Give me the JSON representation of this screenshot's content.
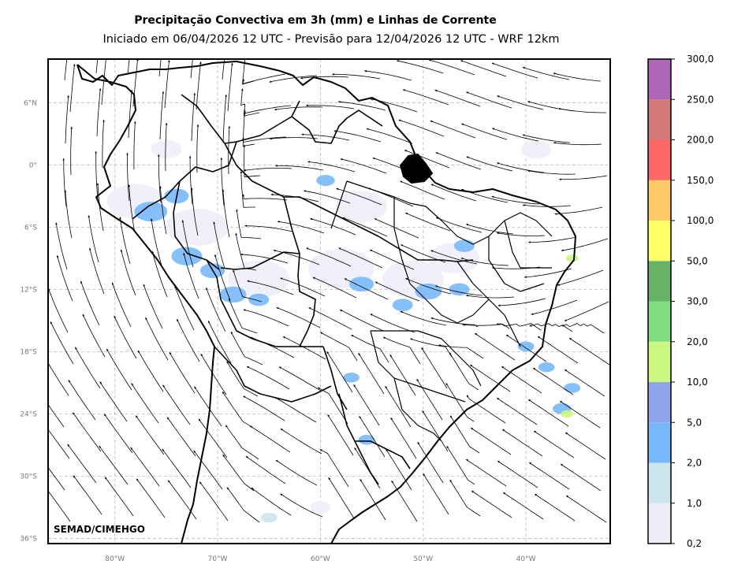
{
  "title": "Precipitação Convectiva em 3h (mm) e Linhas de Corrente",
  "subtitle": "Iniciado em 06/04/2026 12 UTC - Previsão para 12/04/2026 12 UTC - WRF 12km",
  "credit": "SEMAD/CIMEHGO",
  "map": {
    "lon_range": [
      -86.5,
      -31.8
    ],
    "lat_range": [
      -36.5,
      10.2
    ],
    "lat_ticks": [
      {
        "value": 6,
        "label": "6°N"
      },
      {
        "value": 0,
        "label": "0°"
      },
      {
        "value": -6,
        "label": "6°S"
      },
      {
        "value": -12,
        "label": "12°S"
      },
      {
        "value": -18,
        "label": "18°S"
      },
      {
        "value": -24,
        "label": "24°S"
      },
      {
        "value": -30,
        "label": "30°S"
      },
      {
        "value": -36,
        "label": "36°S"
      }
    ],
    "lon_ticks": [
      {
        "value": -80,
        "label": "80°W"
      },
      {
        "value": -70,
        "label": "70°W"
      },
      {
        "value": -60,
        "label": "60°W"
      },
      {
        "value": -50,
        "label": "50°W"
      },
      {
        "value": -40,
        "label": "40°W"
      }
    ],
    "grid": true,
    "grid_color": "#bbbbbb"
  },
  "colorbar": {
    "levels": [
      "0,2",
      "1,0",
      "2,0",
      "5,0",
      "10,0",
      "20,0",
      "30,0",
      "50,0",
      "100,0",
      "150,0",
      "200,0",
      "250,0",
      "300,0"
    ],
    "colors": [
      "#eeeefa",
      "#cce5ee",
      "#78b9fb",
      "#8ea4ec",
      "#cbf77e",
      "#7fdd7f",
      "#66b266",
      "#ffff66",
      "#ffc966",
      "#ff6666",
      "#d47878",
      "#b066b8"
    ]
  },
  "precip_cells": [
    {
      "lon": -76.5,
      "lat": -4.5,
      "r": 1.6,
      "level": 2
    },
    {
      "lon": -74.0,
      "lat": -3.0,
      "r": 1.2,
      "level": 2
    },
    {
      "lon": -73.0,
      "lat": -8.8,
      "r": 1.5,
      "level": 2
    },
    {
      "lon": -70.5,
      "lat": -10.2,
      "r": 1.2,
      "level": 2
    },
    {
      "lon": -68.5,
      "lat": -12.5,
      "r": 1.3,
      "level": 2
    },
    {
      "lon": -66.0,
      "lat": -13.0,
      "r": 1.0,
      "level": 2
    },
    {
      "lon": -56.0,
      "lat": -11.5,
      "r": 1.2,
      "level": 2
    },
    {
      "lon": -52.0,
      "lat": -13.5,
      "r": 1.0,
      "level": 2
    },
    {
      "lon": -49.5,
      "lat": -12.2,
      "r": 1.3,
      "level": 2
    },
    {
      "lon": -46.5,
      "lat": -12.0,
      "r": 1.0,
      "level": 2
    },
    {
      "lon": -46.0,
      "lat": -7.8,
      "r": 1.0,
      "level": 2
    },
    {
      "lon": -59.5,
      "lat": -1.5,
      "r": 0.9,
      "level": 2
    },
    {
      "lon": -57.0,
      "lat": -20.5,
      "r": 0.8,
      "level": 2
    },
    {
      "lon": -55.5,
      "lat": -26.5,
      "r": 0.8,
      "level": 2
    },
    {
      "lon": -40.0,
      "lat": -17.5,
      "r": 0.8,
      "level": 2
    },
    {
      "lon": -38.0,
      "lat": -19.5,
      "r": 0.8,
      "level": 2
    },
    {
      "lon": -35.5,
      "lat": -21.5,
      "r": 0.8,
      "level": 2
    },
    {
      "lon": -36.5,
      "lat": -23.5,
      "r": 0.9,
      "level": 2
    },
    {
      "lon": -35.5,
      "lat": -9.0,
      "r": 0.6,
      "level": 4
    },
    {
      "lon": -36.0,
      "lat": -24.0,
      "r": 0.6,
      "level": 4
    },
    {
      "lon": -78.0,
      "lat": -3.5,
      "r": 2.8,
      "level": 0
    },
    {
      "lon": -72.0,
      "lat": -6.0,
      "r": 3.0,
      "level": 0
    },
    {
      "lon": -66.0,
      "lat": -11.0,
      "r": 3.0,
      "level": 0
    },
    {
      "lon": -58.0,
      "lat": -10.0,
      "r": 3.2,
      "level": 0
    },
    {
      "lon": -51.0,
      "lat": -11.0,
      "r": 3.0,
      "level": 0
    },
    {
      "lon": -47.0,
      "lat": -9.0,
      "r": 2.5,
      "level": 0
    },
    {
      "lon": -56.0,
      "lat": -4.0,
      "r": 2.5,
      "level": 0
    },
    {
      "lon": -39.0,
      "lat": 1.5,
      "r": 1.5,
      "level": 0
    },
    {
      "lon": -75.0,
      "lat": 1.5,
      "r": 1.5,
      "level": 0
    },
    {
      "lon": -60.0,
      "lat": -33.0,
      "r": 1.0,
      "level": 0
    },
    {
      "lon": -65.0,
      "lat": -34.0,
      "r": 0.8,
      "level": 1
    }
  ]
}
